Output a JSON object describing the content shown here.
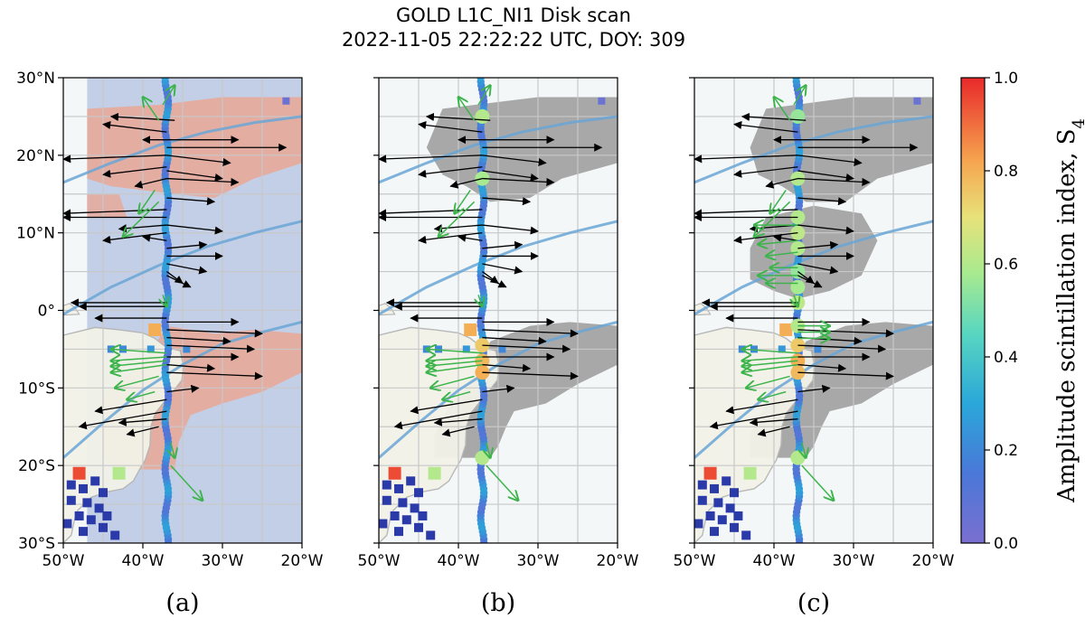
{
  "title_line1": "GOLD L1C_NI1 Disk scan",
  "title_line2": "2022-11-05 22:22:22 UTC, DOY: 309",
  "colors": {
    "cloud_red": "#e8a99a",
    "cloud_blue": "#c3cfe6",
    "land": "#f2f2e8",
    "ocean_light": "#f3f7f8",
    "gray_region": "#a8a8a8",
    "magnetic_line": "#6aa6d6",
    "arrow_black": "#000000",
    "arrow_green": "#3cb44b",
    "grid": "#c8c8c8"
  },
  "chart_data": {
    "type": "map-scatter",
    "panels": [
      {
        "label": "(a)",
        "background": "cloud"
      },
      {
        "label": "(b)",
        "background": "mask"
      },
      {
        "label": "(c)",
        "background": "mask"
      }
    ],
    "xlabel": "",
    "ylabel": "",
    "xlim": [
      -50,
      -20
    ],
    "ylim": [
      -30,
      30
    ],
    "x_ticks": [
      -50,
      -40,
      -30,
      -20
    ],
    "x_tick_labels": [
      "50°W",
      "40°W",
      "30°W",
      "20°W"
    ],
    "y_ticks": [
      30,
      20,
      10,
      0,
      -10,
      -20,
      -30
    ],
    "y_tick_labels": [
      "30°N",
      "20°N",
      "10°N",
      "0°",
      "10°S",
      "20°S",
      "30°S"
    ],
    "grid_step_deg": 5,
    "track": {
      "lon": -37.0,
      "lat_start": -30,
      "lat_end": 30,
      "s4_base": 0.2
    },
    "high_s4_points": {
      "b": [
        [
          -37,
          25,
          0.6
        ],
        [
          -37,
          17,
          0.58
        ],
        [
          -37,
          -4.5,
          0.75
        ],
        [
          -37,
          -6.5,
          0.78
        ],
        [
          -37,
          -8,
          0.8
        ],
        [
          -37,
          -19,
          0.6
        ]
      ],
      "c": [
        [
          -37,
          25,
          0.55
        ],
        [
          -37,
          17,
          0.6
        ],
        [
          -37,
          12,
          0.6
        ],
        [
          -37,
          10,
          0.62
        ],
        [
          -37,
          8,
          0.6
        ],
        [
          -37,
          5,
          0.55
        ],
        [
          -37,
          3,
          0.58
        ],
        [
          -37,
          1,
          0.62
        ],
        [
          -37,
          -2,
          0.6
        ],
        [
          -37,
          -4.5,
          0.75
        ],
        [
          -37,
          -6.5,
          0.8
        ],
        [
          -37,
          -8,
          0.78
        ],
        [
          -37,
          -19,
          0.6
        ]
      ]
    },
    "stations": [
      {
        "lon": -38.5,
        "lat": -2.5,
        "s4": 0.8
      },
      {
        "lon": -44.0,
        "lat": -5,
        "s4": 0.2
      },
      {
        "lon": -42.5,
        "lat": -5,
        "s4": 0.2
      },
      {
        "lon": -39.0,
        "lat": -5,
        "s4": 0.25
      },
      {
        "lon": -34.5,
        "lat": -5,
        "s4": 0.2
      },
      {
        "lon": -48.0,
        "lat": -21,
        "s4": 0.95
      },
      {
        "lon": -43.0,
        "lat": -21,
        "s4": 0.6
      },
      {
        "lon": -22.0,
        "lat": 27,
        "s4": 0.05
      }
    ],
    "magnetic_lines": [
      [
        [
          -50,
          16.5
        ],
        [
          -44,
          19
        ],
        [
          -38,
          21.3
        ],
        [
          -32,
          23
        ],
        [
          -26,
          24.2
        ],
        [
          -20,
          25
        ]
      ],
      [
        [
          -50,
          -0.5
        ],
        [
          -44,
          3
        ],
        [
          -38,
          5.8
        ],
        [
          -32,
          8.2
        ],
        [
          -26,
          10
        ],
        [
          -20,
          11.5
        ]
      ],
      [
        [
          -50,
          -19
        ],
        [
          -45,
          -14.5
        ],
        [
          -40,
          -10.3
        ],
        [
          -35,
          -7
        ],
        [
          -30,
          -4.3
        ],
        [
          -25,
          -2.8
        ],
        [
          -20,
          -1.5
        ]
      ]
    ],
    "arrows_black": [
      [
        -36,
        24.5,
        -44,
        25
      ],
      [
        -37,
        23,
        -45,
        24
      ],
      [
        -37,
        22,
        -40,
        22
      ],
      [
        -37,
        22,
        -28,
        22
      ],
      [
        -37,
        21,
        -22,
        21
      ],
      [
        -37,
        20,
        -29,
        19
      ],
      [
        -37,
        20,
        -50,
        19.5
      ],
      [
        -37,
        18.5,
        -45,
        17.5
      ],
      [
        -37,
        18,
        -30,
        17
      ],
      [
        -37,
        17,
        -41,
        16
      ],
      [
        -37,
        17,
        -28,
        16.5
      ],
      [
        -37,
        14.5,
        -31,
        14
      ],
      [
        -37,
        13,
        -50,
        12.5
      ],
      [
        -37,
        12,
        -50,
        12
      ],
      [
        -37,
        11,
        -43,
        10.5
      ],
      [
        -37,
        11,
        -30,
        10.2
      ],
      [
        -37,
        10,
        -45,
        9
      ],
      [
        -37,
        9,
        -40,
        9.5
      ],
      [
        -37,
        8,
        -32,
        8.5
      ],
      [
        -37,
        7,
        -30,
        7
      ],
      [
        -37,
        6,
        -32,
        5
      ],
      [
        -37,
        5,
        -35,
        3.5
      ],
      [
        -37,
        4.5,
        -34,
        3
      ],
      [
        -37,
        1,
        -49,
        1
      ],
      [
        -37,
        0.5,
        -48,
        0.5
      ],
      [
        -37,
        -1,
        -46,
        -1
      ],
      [
        -37,
        -1.5,
        -28,
        -1.5
      ],
      [
        -37,
        -2.5,
        -25,
        -3
      ],
      [
        -37,
        -3.5,
        -29,
        -4
      ],
      [
        -37,
        -4.5,
        -26,
        -5
      ],
      [
        -37,
        -6,
        -28,
        -6
      ],
      [
        -37,
        -7,
        -31,
        -7.5
      ],
      [
        -37,
        -8,
        -25,
        -8.5
      ],
      [
        -37,
        -10.5,
        -33,
        -10
      ],
      [
        -37,
        -11.5,
        -46,
        -13
      ],
      [
        -37,
        -13,
        -48,
        -15
      ],
      [
        -37,
        -14,
        -43,
        -14.5
      ],
      [
        -38,
        -15,
        -42,
        -16
      ]
    ],
    "arrows_green": [
      [
        -38,
        24.5,
        -40,
        27.5
      ],
      [
        -37.5,
        26.5,
        -36,
        29
      ],
      [
        -38.5,
        15.5,
        -40.5,
        12.5
      ],
      [
        -38,
        14,
        -42.5,
        9.5
      ],
      [
        -37.5,
        2,
        -37,
        0.5
      ],
      [
        -37,
        -5.5,
        -44,
        -5
      ],
      [
        -37,
        -6,
        -44,
        -6.5
      ],
      [
        -37,
        -6.5,
        -44,
        -7.2
      ],
      [
        -37,
        -7,
        -44,
        -8
      ],
      [
        -38,
        -8.5,
        -43.5,
        -10
      ],
      [
        -38.5,
        -10.5,
        -42,
        -11.5
      ],
      [
        -36.5,
        -17,
        -36,
        -19
      ],
      [
        -36.5,
        -20,
        -32.5,
        -24.5
      ]
    ],
    "arrows_green_c_extra": [
      [
        -37,
        11,
        -42.5,
        11
      ],
      [
        -37,
        9,
        -42,
        8.5
      ],
      [
        -37,
        7.5,
        -41,
        7
      ],
      [
        -37,
        5.5,
        -40.5,
        5.5
      ],
      [
        -37,
        4.5,
        -42,
        4.5
      ],
      [
        -37,
        3.5,
        -41,
        3.5
      ],
      [
        -37,
        -2,
        -33,
        -2
      ],
      [
        -37,
        -2.8,
        -33,
        -2.8
      ],
      [
        -37,
        -3.6,
        -33,
        -3.6
      ]
    ],
    "colorbar": {
      "label": "Amplitude scintillation index, S",
      "label_subscript": "4",
      "range": [
        0.0,
        1.0
      ],
      "ticks": [
        0.0,
        0.2,
        0.4,
        0.6,
        0.8,
        1.0
      ],
      "tick_labels": [
        "0.0",
        "0.2",
        "0.4",
        "0.6",
        "0.8",
        "1.0"
      ],
      "colormap": "rainbow"
    }
  }
}
